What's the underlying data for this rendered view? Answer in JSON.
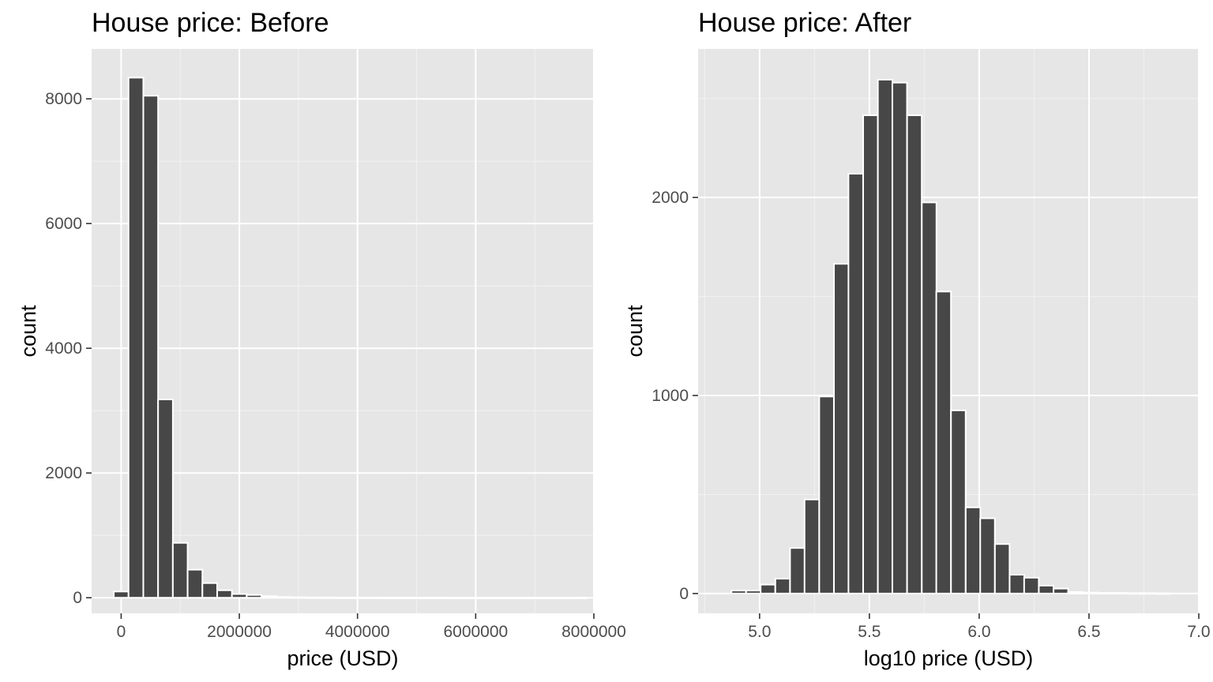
{
  "chart_data": [
    {
      "type": "bar",
      "title": "House price: Before",
      "xlabel": "price (USD)",
      "ylabel": "count",
      "xlim": [
        -500000,
        8000000
      ],
      "ylim": [
        -250,
        8800
      ],
      "x_ticks": [
        0,
        2000000,
        4000000,
        6000000,
        8000000
      ],
      "x_tick_labels": [
        "0",
        "2000000",
        "4000000",
        "6000000",
        "8000000"
      ],
      "y_ticks": [
        0,
        2000,
        4000,
        6000,
        8000
      ],
      "y_tick_labels": [
        "0",
        "2000",
        "4000",
        "6000",
        "8000"
      ],
      "grid": true,
      "bin_width": 250000,
      "bin_centers": [
        0,
        250000,
        500000,
        750000,
        1000000,
        1250000,
        1500000,
        1750000,
        2000000,
        2250000,
        2500000,
        2750000,
        3000000,
        3250000,
        3500000,
        3750000,
        4000000,
        4250000,
        4500000,
        4750000,
        5000000,
        5250000,
        5500000,
        5750000,
        6000000,
        6250000,
        6500000,
        6750000,
        7000000,
        7250000,
        7500000,
        7750000
      ],
      "values": [
        100,
        8340,
        8050,
        3180,
        880,
        450,
        235,
        120,
        60,
        45,
        25,
        12,
        8,
        5,
        4,
        3,
        2,
        2,
        1,
        1,
        1,
        1,
        1,
        0,
        1,
        0,
        0,
        0,
        0,
        0,
        0,
        1
      ]
    },
    {
      "type": "bar",
      "title": "House price: After",
      "xlabel": "log10 price (USD)",
      "ylabel": "count",
      "xlim": [
        4.72,
        7.0
      ],
      "ylim": [
        -100,
        2750
      ],
      "x_ticks": [
        5.0,
        5.5,
        6.0,
        6.5,
        7.0
      ],
      "x_tick_labels": [
        "5.0",
        "5.5",
        "6.0",
        "6.5",
        "7.0"
      ],
      "y_ticks": [
        0,
        1000,
        2000
      ],
      "y_tick_labels": [
        "0",
        "1000",
        "2000"
      ],
      "grid": true,
      "bin_width": 0.0667,
      "bin_centers": [
        4.905,
        4.972,
        5.038,
        5.105,
        5.172,
        5.238,
        5.305,
        5.372,
        5.438,
        5.505,
        5.572,
        5.638,
        5.705,
        5.772,
        5.838,
        5.905,
        5.972,
        6.038,
        6.105,
        6.172,
        6.238,
        6.305,
        6.372,
        6.438,
        6.505,
        6.572,
        6.638,
        6.705,
        6.772,
        6.838
      ],
      "values": [
        15,
        15,
        45,
        75,
        230,
        475,
        995,
        1665,
        2120,
        2415,
        2595,
        2580,
        2415,
        1975,
        1525,
        925,
        435,
        380,
        250,
        95,
        80,
        40,
        25,
        8,
        5,
        3,
        3,
        2,
        2,
        1
      ]
    }
  ]
}
